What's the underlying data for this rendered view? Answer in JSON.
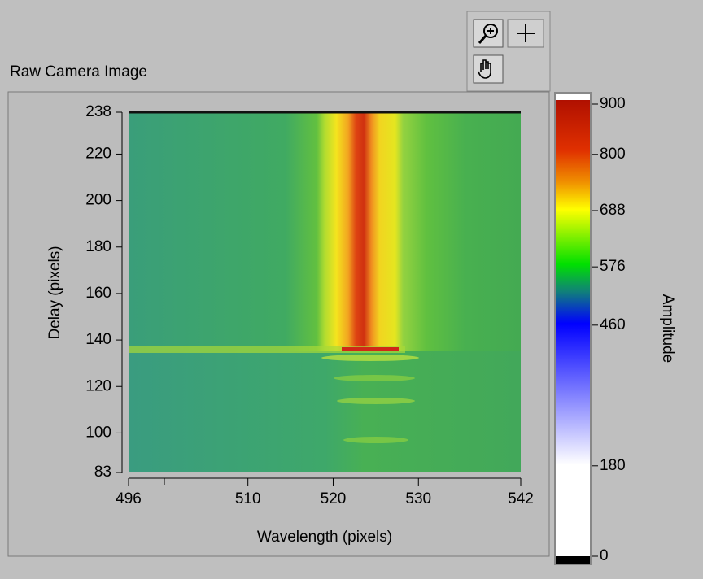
{
  "graph": {
    "label": "Raw Camera Image",
    "x_axis": {
      "label": "Wavelength (pixels)",
      "range": [
        496,
        542
      ],
      "ticks": [
        496,
        510,
        520,
        530,
        542
      ]
    },
    "y_axis": {
      "label": "Delay (pixels)",
      "range": [
        83,
        238
      ],
      "ticks": [
        83,
        100,
        120,
        140,
        160,
        180,
        200,
        220,
        238
      ]
    },
    "color_scale": {
      "label": "Amplitude",
      "range": [
        0,
        900
      ],
      "ticks": [
        0,
        180,
        460,
        576,
        688,
        800,
        900
      ]
    }
  }
}
